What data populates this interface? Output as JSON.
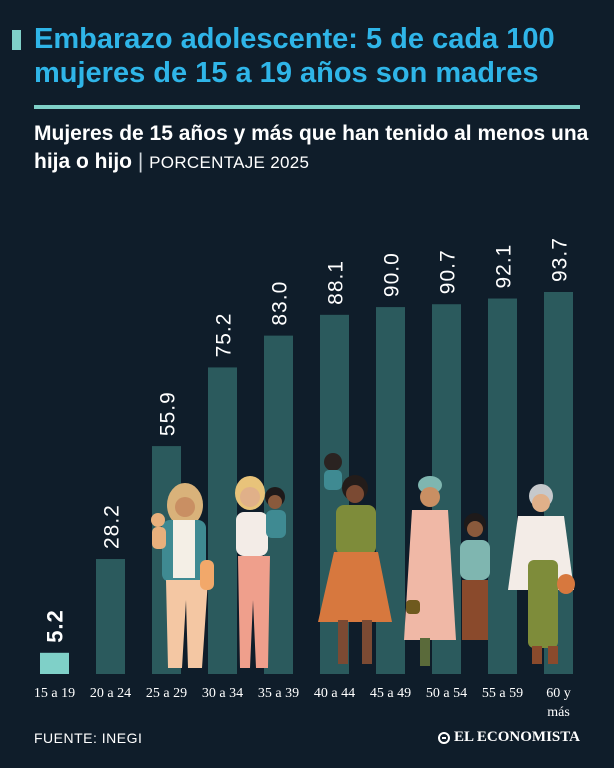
{
  "header": {
    "title": "Embarazo adolescente: 5 de cada 100 mujeres de 15 a 19 años son madres",
    "subtitle_main": "Mujeres de 15 años y más que han tenido al menos una hija o hijo",
    "subtitle_sep": "|",
    "subtitle_unit": "PORCENTAJE 2025"
  },
  "chart_data": {
    "type": "bar",
    "categories": [
      "15 a 19",
      "20 a 24",
      "25 a 29",
      "30 a 34",
      "35 a 39",
      "40 a 44",
      "45 a 49",
      "50 a 54",
      "55 a 59",
      "60 y más"
    ],
    "values": [
      5.2,
      28.2,
      55.9,
      75.2,
      83.0,
      88.1,
      90.0,
      90.7,
      92.1,
      93.7
    ],
    "value_labels": [
      "5.2",
      "28.2",
      "55.9",
      "75.2",
      "83.0",
      "88.1",
      "90.0",
      "90.7",
      "92.1",
      "93.7"
    ],
    "ylim": [
      0,
      100
    ],
    "grid": false,
    "legend": "none",
    "colors": {
      "bar": "#2b5a5d",
      "highlight_bar": "#7fd0c8",
      "background": "#0f1d2a",
      "title": "#2fb5e8"
    },
    "highlight_index": 0
  },
  "footer": {
    "source": "FUENTE:  INEGI",
    "brand": "EL ECONOMISTA"
  }
}
